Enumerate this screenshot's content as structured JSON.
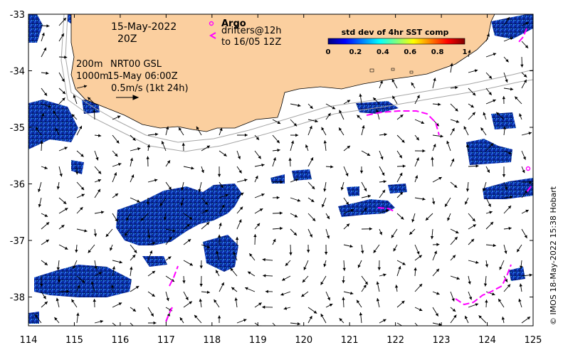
{
  "map": {
    "date_label": "15-May-2022",
    "time_label": "20Z",
    "depth_200": "200m",
    "depth_1000": "1000m",
    "product": "NRT00 GSL",
    "product_time": "15-May 06:00Z",
    "scale_label": "0.5m/s (1kt 24h)",
    "argo_label": "Argo",
    "drifters_line1": "drifters@12h",
    "drifters_line2": "to 16/05 12Z",
    "credit": "© IMOS 18-May-2022 15:38 Hobart",
    "x_ticks": [
      "114",
      "115",
      "116",
      "117",
      "118",
      "119",
      "120",
      "121",
      "122",
      "123",
      "124",
      "125"
    ],
    "y_ticks": [
      "-33",
      "-34",
      "-35",
      "-36",
      "-37",
      "-38"
    ],
    "colors": {
      "land": "#fbcf9f",
      "ocean": "#ffffff",
      "drifter": "#ff00ff"
    }
  },
  "colorbar": {
    "title": "std dev of 4hr SST comp",
    "ticks": [
      "0",
      "0.2",
      "0.4",
      "0.6",
      "0.8",
      "1"
    ],
    "stops": [
      "#00007f",
      "#0000ff",
      "#007fff",
      "#00ffff",
      "#7fff7f",
      "#ffff00",
      "#ff7f00",
      "#ff0000",
      "#7f0000"
    ]
  }
}
